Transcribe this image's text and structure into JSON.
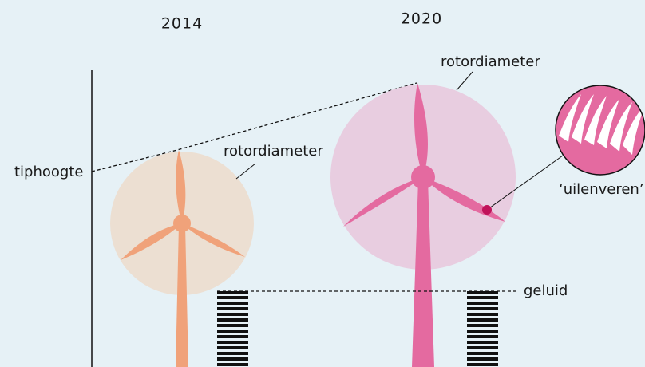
{
  "years": [
    "2014",
    "2020"
  ],
  "labels": {
    "tip_height": "tiphoogte",
    "rotor_2014": "rotordiameter",
    "rotor_2020": "rotordiameter",
    "feathers": "‘uilenveren’",
    "noise": "geluid"
  }
}
